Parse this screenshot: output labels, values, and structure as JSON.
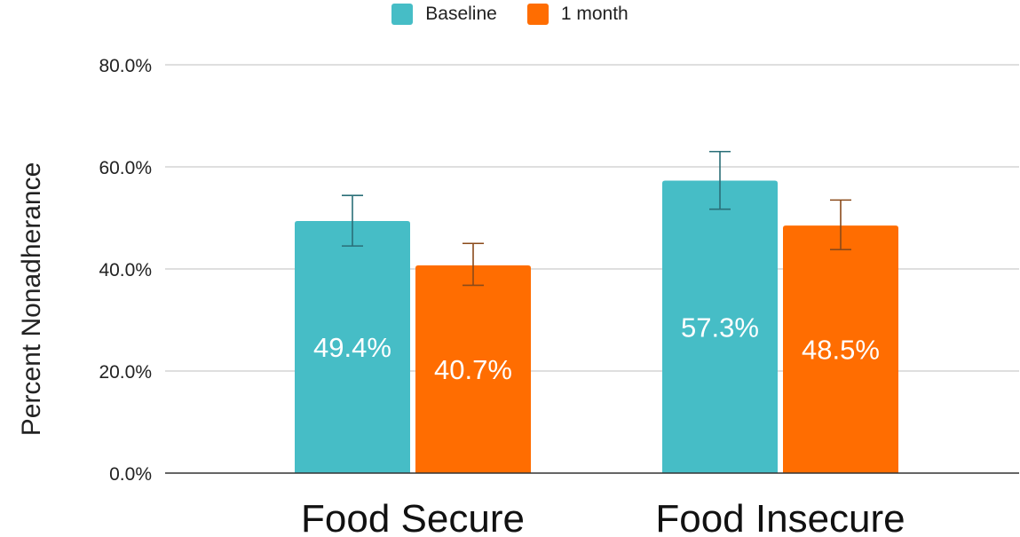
{
  "chart_data": {
    "type": "bar",
    "title": "",
    "categories": [
      "Food Secure",
      "Food Insecure"
    ],
    "series": [
      {
        "name": "Baseline",
        "color": "#46bdc6",
        "values": [
          49.4,
          57.3
        ],
        "labels": [
          "49.4%",
          "57.3%"
        ],
        "error_low": [
          44.5,
          51.7
        ],
        "error_high": [
          54.4,
          63.0
        ]
      },
      {
        "name": "1 month",
        "color": "#ff6d01",
        "values": [
          40.7,
          48.5
        ],
        "labels": [
          "40.7%",
          "48.5%"
        ],
        "error_low": [
          36.8,
          43.8
        ],
        "error_high": [
          45.0,
          53.5
        ]
      }
    ],
    "xlabel": "",
    "ylabel": "Percent Nonadherance",
    "ylim": [
      0,
      80
    ],
    "yticks": [
      0,
      20,
      40,
      60,
      80
    ],
    "ytick_labels": [
      "0.0%",
      "20.0%",
      "40.0%",
      "60.0%",
      "80.0%"
    ],
    "grid": true,
    "legend_position": "top-center",
    "error_bar_colors": [
      "#2a6f78",
      "#8a4a1a"
    ]
  }
}
